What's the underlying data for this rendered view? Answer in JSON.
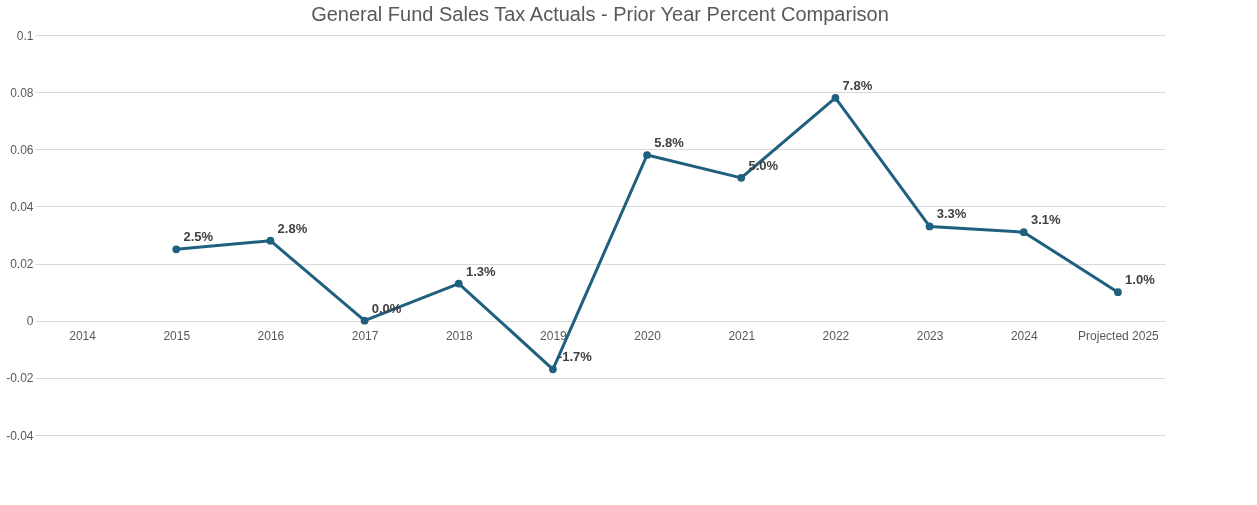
{
  "chart_data": {
    "type": "line",
    "title": "General Fund Sales Tax Actuals - Prior Year Percent Comparison",
    "categories": [
      "2014",
      "2015",
      "2016",
      "2017",
      "2018",
      "2019",
      "2020",
      "2021",
      "2022",
      "2023",
      "2024",
      "Projected 2025"
    ],
    "series": [
      {
        "color": "#1f5f7f",
        "values": [
          null,
          0.025,
          0.028,
          0.0,
          0.013,
          -0.017,
          0.058,
          0.05,
          0.078,
          0.033,
          0.031,
          0.01
        ],
        "value_labels": [
          null,
          "2.5%",
          "2.8%",
          "0.0%",
          "1.3%",
          "-1.7%",
          "5.8%",
          "5.0%",
          "7.8%",
          "3.3%",
          "3.1%",
          "1.0%"
        ]
      }
    ],
    "ylim": [
      -0.04,
      0.1
    ],
    "yticks": [
      -0.04,
      -0.02,
      0,
      0.02,
      0.04,
      0.06,
      0.08,
      0.1
    ],
    "grid": "y",
    "marker": "circle"
  }
}
